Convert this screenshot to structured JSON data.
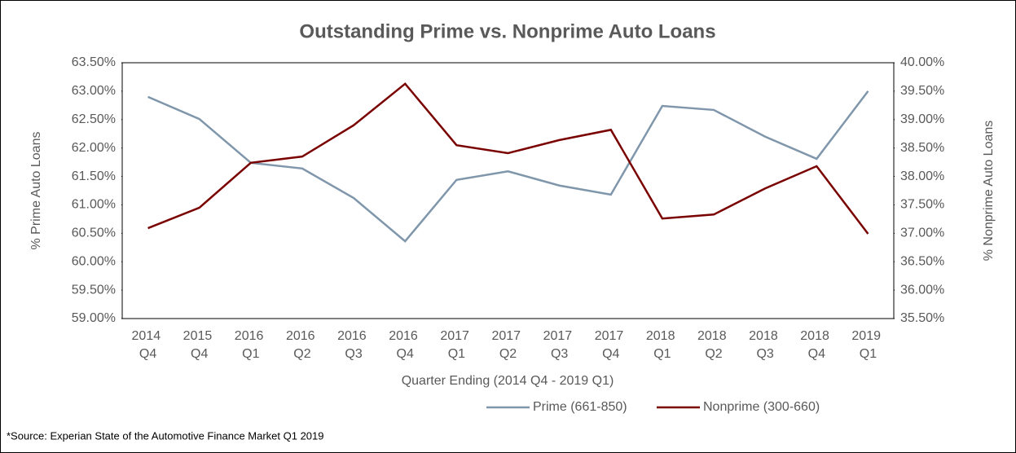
{
  "chart_data": {
    "type": "line",
    "title": "Outstanding Prime vs. Nonprime Auto Loans",
    "x_label": "Quarter Ending (2014 Q4 - 2019 Q1)",
    "y_label": "% Prime Auto Loans",
    "y2_label": "% Nonprime  Auto Loans",
    "note": "*Source: Experian State of the Automotive Finance Market Q1 2019",
    "categories": [
      "2014 Q4",
      "2015 Q4",
      "2016 Q1",
      "2016 Q2",
      "2016 Q3",
      "2016 Q4",
      "2017 Q1",
      "2017 Q2",
      "2017 Q3",
      "2017 Q4",
      "2018 Q1",
      "2018 Q2",
      "2018 Q3",
      "2018 Q4",
      "2019 Q1"
    ],
    "series": [
      {
        "name": "Prime (661-850)",
        "color": "#7f96ab",
        "axis": "y",
        "values": [
          62.9,
          62.51,
          61.74,
          61.64,
          61.12,
          60.36,
          61.44,
          61.59,
          61.34,
          61.18,
          62.74,
          62.67,
          62.2,
          61.81,
          63.0
        ]
      },
      {
        "name": "Nonprime (300-660)",
        "color": "#7a0000",
        "axis": "y2",
        "values": [
          37.09,
          37.45,
          38.24,
          38.35,
          38.9,
          39.63,
          38.55,
          38.41,
          38.64,
          38.82,
          37.26,
          37.33,
          37.79,
          38.18,
          36.99
        ]
      }
    ],
    "ylim": [
      59,
      63.5
    ],
    "yticks": [
      {
        "value": 59,
        "label": "59.00%"
      },
      {
        "value": 59.5,
        "label": "59.50%"
      },
      {
        "value": 60,
        "label": "60.00%"
      },
      {
        "value": 60.5,
        "label": "60.50%"
      },
      {
        "value": 61,
        "label": "61.00%"
      },
      {
        "value": 61.5,
        "label": "61.50%"
      },
      {
        "value": 62,
        "label": "62.00%"
      },
      {
        "value": 62.5,
        "label": "62.50%"
      },
      {
        "value": 63,
        "label": "63.00%"
      },
      {
        "value": 63.5,
        "label": "63.50%"
      }
    ],
    "y2lim": [
      35.5,
      40
    ],
    "y2ticks": [
      {
        "value": 35.5,
        "label": "35.50%"
      },
      {
        "value": 36,
        "label": "36.00%"
      },
      {
        "value": 36.5,
        "label": "36.50%"
      },
      {
        "value": 37,
        "label": "37.00%"
      },
      {
        "value": 37.5,
        "label": "37.50%"
      },
      {
        "value": 38,
        "label": "38.00%"
      },
      {
        "value": 38.5,
        "label": "38.50%"
      },
      {
        "value": 39,
        "label": "39.00%"
      },
      {
        "value": 39.5,
        "label": "39.50%"
      },
      {
        "value": 40,
        "label": "40.00%"
      }
    ],
    "grid": false,
    "legend": "bottom"
  }
}
